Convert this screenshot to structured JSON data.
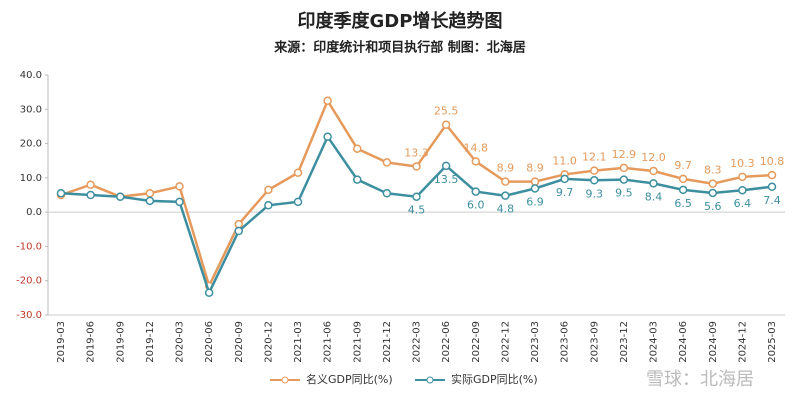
{
  "chart_data": {
    "type": "line",
    "title": "印度季度GDP增长趋势图",
    "subtitle": "来源：印度统计和项目执行部  制图：北海居",
    "watermark": "雪球：北海居",
    "categories": [
      "2019-03",
      "2019-06",
      "2019-09",
      "2019-12",
      "2020-03",
      "2020-06",
      "2020-09",
      "2020-12",
      "2021-03",
      "2021-06",
      "2021-09",
      "2021-12",
      "2022-03",
      "2022-06",
      "2022-09",
      "2022-12",
      "2023-03",
      "2023-06",
      "2023-09",
      "2023-12",
      "2024-03",
      "2024-06",
      "2024-09",
      "2024-12",
      "2025-03"
    ],
    "series": [
      {
        "name": "名义GDP同比(%)",
        "color": "#e59a5c",
        "values": [
          5.0,
          8.0,
          4.5,
          5.5,
          7.5,
          -21.5,
          -3.5,
          6.5,
          11.5,
          32.5,
          18.5,
          14.5,
          13.3,
          25.5,
          14.8,
          8.9,
          8.9,
          11.0,
          12.1,
          12.9,
          12.0,
          9.7,
          8.3,
          10.3,
          10.8
        ],
        "value_labels": [
          null,
          null,
          null,
          null,
          null,
          null,
          null,
          null,
          null,
          null,
          null,
          null,
          "13.3",
          "25.5",
          "14.8",
          "8.9",
          "8.9",
          "11.0",
          "12.1",
          "12.9",
          "12.0",
          "9.7",
          "8.3",
          "10.3",
          "10.8"
        ]
      },
      {
        "name": "实际GDP同比(%)",
        "color": "#3d8fa0",
        "values": [
          5.5,
          5.0,
          4.5,
          3.3,
          3.0,
          -23.5,
          -5.5,
          2.0,
          3.0,
          22.0,
          9.5,
          5.5,
          4.5,
          13.5,
          6.0,
          4.8,
          6.9,
          9.7,
          9.3,
          9.5,
          8.4,
          6.5,
          5.6,
          6.4,
          7.4
        ],
        "value_labels": [
          null,
          null,
          null,
          null,
          null,
          null,
          null,
          null,
          null,
          null,
          null,
          null,
          "4.5",
          "13.5",
          "6.0",
          "4.8",
          "6.9",
          "9.7",
          "9.3",
          "9.5",
          "8.4",
          "6.5",
          "5.6",
          "6.4",
          "7.4"
        ]
      }
    ],
    "ylim": [
      -30,
      40
    ],
    "yticks": [
      {
        "value": -30,
        "label": "-30.0"
      },
      {
        "value": -20,
        "label": "-20.0"
      },
      {
        "value": -10,
        "label": "-10.0"
      },
      {
        "value": 0,
        "label": "0.0"
      },
      {
        "value": 10,
        "label": "10.0"
      },
      {
        "value": 20,
        "label": "20.0"
      },
      {
        "value": 30,
        "label": "30.0"
      },
      {
        "value": 40,
        "label": "40.0"
      }
    ],
    "negative_tick_color": "#c0392b",
    "legend": "bottom"
  }
}
